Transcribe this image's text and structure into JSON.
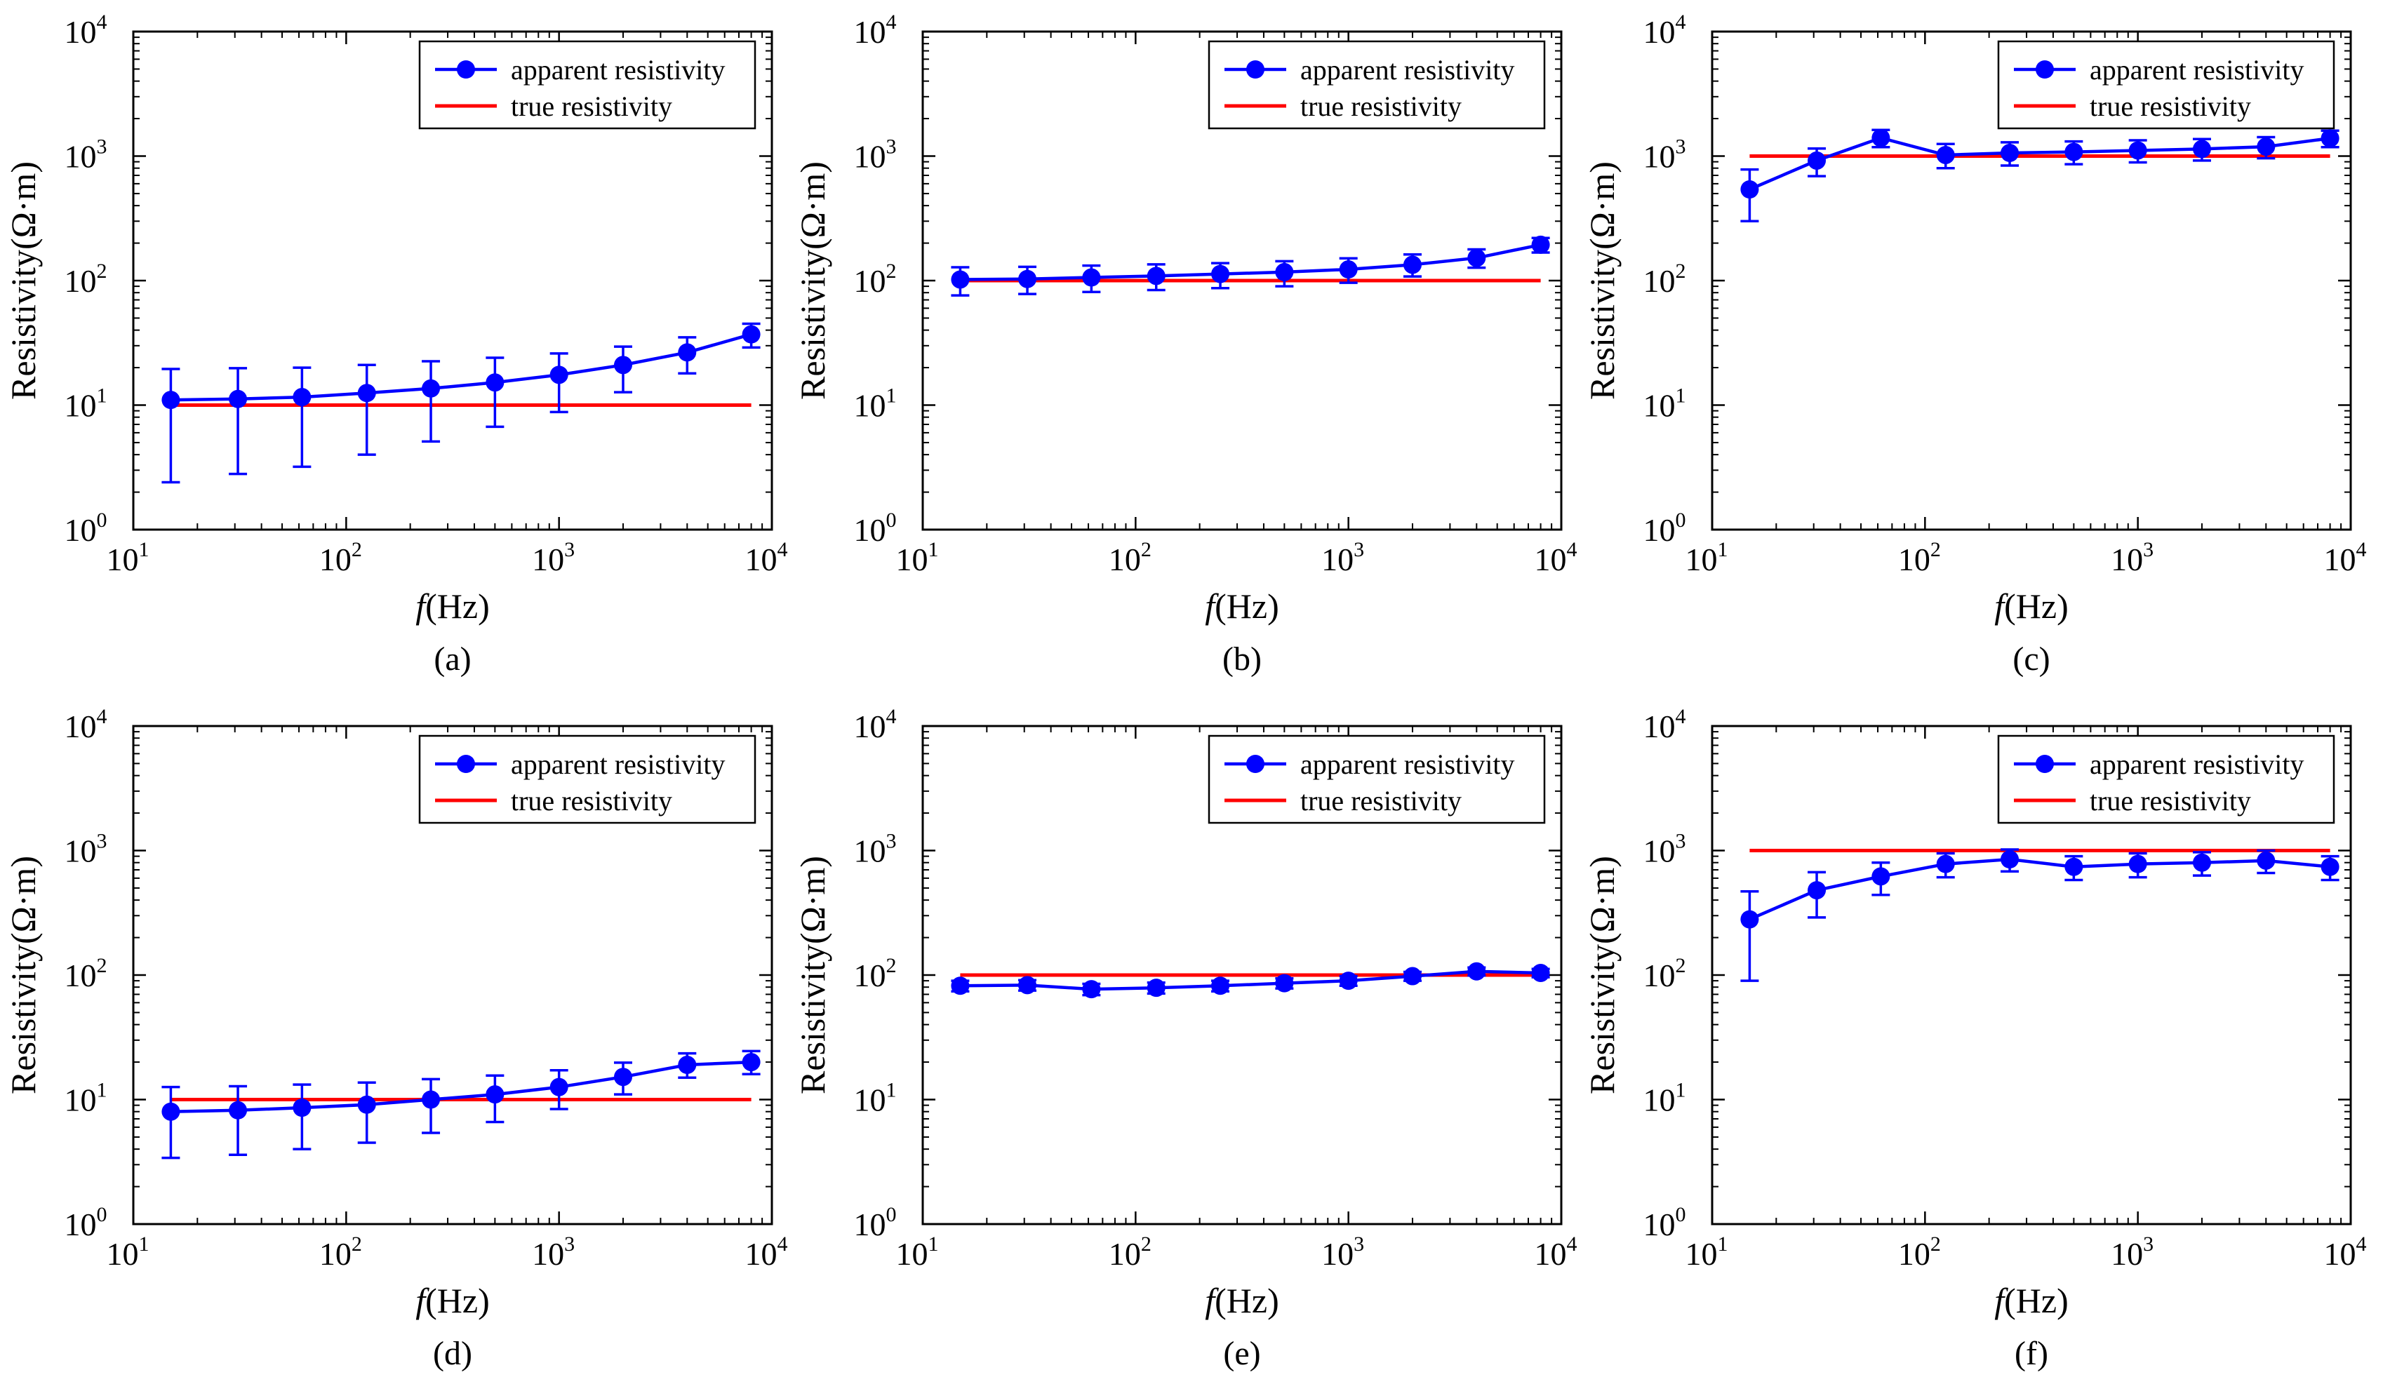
{
  "colors": {
    "apparent": "#0000ff",
    "true": "#ff0000",
    "axis": "#000000"
  },
  "chart_data": [
    {
      "type": "line",
      "caption": "(a)",
      "xlabel_f": "f",
      "xlabel_unit": "(Hz)",
      "ylabel": "Resistivity(Ω·m)",
      "xscale": "log",
      "yscale": "log",
      "xlim": [
        10,
        10000
      ],
      "ylim": [
        1,
        10000
      ],
      "x_ticks": [
        {
          "base": "10",
          "exp": "1"
        },
        {
          "base": "10",
          "exp": "2"
        },
        {
          "base": "10",
          "exp": "3"
        },
        {
          "base": "10",
          "exp": "4"
        }
      ],
      "y_ticks": [
        {
          "base": "10",
          "exp": "0"
        },
        {
          "base": "10",
          "exp": "1"
        },
        {
          "base": "10",
          "exp": "2"
        },
        {
          "base": "10",
          "exp": "3"
        },
        {
          "base": "10",
          "exp": "4"
        }
      ],
      "legend_position": "top-right",
      "series": [
        {
          "name": "apparent resistivity",
          "style": "line-marker-errorbar",
          "x": [
            15,
            31,
            62,
            125,
            250,
            500,
            1000,
            2000,
            4000,
            8000
          ],
          "y": [
            11,
            11.2,
            11.6,
            12.5,
            13.6,
            15.2,
            17.5,
            21,
            26.5,
            37
          ],
          "y_low": [
            2.4,
            2.8,
            3.2,
            4,
            5.1,
            6.7,
            8.8,
            12.7,
            18,
            29
          ],
          "y_high": [
            19.5,
            19.8,
            20,
            21,
            22.5,
            24,
            26,
            29.5,
            35,
            45
          ]
        },
        {
          "name": "true resistivity",
          "style": "line",
          "x": [
            15,
            8000
          ],
          "y": [
            10,
            10
          ]
        }
      ]
    },
    {
      "type": "line",
      "caption": "(b)",
      "xlabel_f": "f",
      "xlabel_unit": "(Hz)",
      "ylabel": "Resistivity(Ω·m)",
      "xscale": "log",
      "yscale": "log",
      "xlim": [
        10,
        10000
      ],
      "ylim": [
        1,
        10000
      ],
      "x_ticks": [
        {
          "base": "10",
          "exp": "1"
        },
        {
          "base": "10",
          "exp": "2"
        },
        {
          "base": "10",
          "exp": "3"
        },
        {
          "base": "10",
          "exp": "4"
        }
      ],
      "y_ticks": [
        {
          "base": "10",
          "exp": "0"
        },
        {
          "base": "10",
          "exp": "1"
        },
        {
          "base": "10",
          "exp": "2"
        },
        {
          "base": "10",
          "exp": "3"
        },
        {
          "base": "10",
          "exp": "4"
        }
      ],
      "legend_position": "top-right",
      "series": [
        {
          "name": "apparent resistivity",
          "style": "line-marker-errorbar",
          "x": [
            15,
            31,
            62,
            125,
            250,
            500,
            1000,
            2000,
            4000,
            8000
          ],
          "y": [
            102,
            103,
            106,
            109,
            113,
            117,
            123,
            134,
            152,
            194
          ],
          "y_low": [
            76,
            78,
            81,
            84,
            87,
            90,
            96,
            108,
            127,
            168
          ],
          "y_high": [
            128,
            129,
            132,
            135,
            138,
            143,
            151,
            162,
            178,
            220
          ]
        },
        {
          "name": "true resistivity",
          "style": "line",
          "x": [
            15,
            8000
          ],
          "y": [
            100,
            100
          ]
        }
      ]
    },
    {
      "type": "line",
      "caption": "(c)",
      "xlabel_f": "f",
      "xlabel_unit": "(Hz)",
      "ylabel": "Resistivity(Ω·m)",
      "xscale": "log",
      "yscale": "log",
      "xlim": [
        10,
        10000
      ],
      "ylim": [
        1,
        10000
      ],
      "x_ticks": [
        {
          "base": "10",
          "exp": "1"
        },
        {
          "base": "10",
          "exp": "2"
        },
        {
          "base": "10",
          "exp": "3"
        },
        {
          "base": "10",
          "exp": "4"
        }
      ],
      "y_ticks": [
        {
          "base": "10",
          "exp": "0"
        },
        {
          "base": "10",
          "exp": "1"
        },
        {
          "base": "10",
          "exp": "2"
        },
        {
          "base": "10",
          "exp": "3"
        },
        {
          "base": "10",
          "exp": "4"
        }
      ],
      "legend_position": "top-right",
      "series": [
        {
          "name": "apparent resistivity",
          "style": "line-marker-errorbar",
          "x": [
            15,
            31,
            62,
            125,
            250,
            500,
            1000,
            2000,
            4000,
            8000
          ],
          "y": [
            540,
            920,
            1400,
            1020,
            1060,
            1080,
            1110,
            1140,
            1190,
            1390
          ],
          "y_low": [
            300,
            690,
            1180,
            800,
            840,
            860,
            890,
            920,
            960,
            1180
          ],
          "y_high": [
            780,
            1150,
            1620,
            1250,
            1290,
            1310,
            1340,
            1370,
            1420,
            1600
          ]
        },
        {
          "name": "true resistivity",
          "style": "line",
          "x": [
            15,
            8000
          ],
          "y": [
            1000,
            1000
          ]
        }
      ]
    },
    {
      "type": "line",
      "caption": "(d)",
      "xlabel_f": "f",
      "xlabel_unit": "(Hz)",
      "ylabel": "Resistivity(Ω·m)",
      "xscale": "log",
      "yscale": "log",
      "xlim": [
        10,
        10000
      ],
      "ylim": [
        1,
        10000
      ],
      "x_ticks": [
        {
          "base": "10",
          "exp": "1"
        },
        {
          "base": "10",
          "exp": "2"
        },
        {
          "base": "10",
          "exp": "3"
        },
        {
          "base": "10",
          "exp": "4"
        }
      ],
      "y_ticks": [
        {
          "base": "10",
          "exp": "0"
        },
        {
          "base": "10",
          "exp": "1"
        },
        {
          "base": "10",
          "exp": "2"
        },
        {
          "base": "10",
          "exp": "3"
        },
        {
          "base": "10",
          "exp": "4"
        }
      ],
      "legend_position": "top-right",
      "series": [
        {
          "name": "apparent resistivity",
          "style": "line-marker-errorbar",
          "x": [
            15,
            31,
            62,
            125,
            250,
            500,
            1000,
            2000,
            4000,
            8000
          ],
          "y": [
            8,
            8.2,
            8.6,
            9.1,
            10,
            11,
            12.6,
            15.2,
            19,
            20
          ],
          "y_low": [
            3.4,
            3.6,
            4,
            4.5,
            5.4,
            6.6,
            8.4,
            11,
            15,
            16
          ],
          "y_high": [
            12.6,
            12.8,
            13.2,
            13.7,
            14.6,
            15.6,
            17.2,
            19.8,
            23.5,
            24.5
          ]
        },
        {
          "name": "true resistivity",
          "style": "line",
          "x": [
            15,
            8000
          ],
          "y": [
            10,
            10
          ]
        }
      ]
    },
    {
      "type": "line",
      "caption": "(e)",
      "xlabel_f": "f",
      "xlabel_unit": "(Hz)",
      "ylabel": "Resistivity(Ω·m)",
      "xscale": "log",
      "yscale": "log",
      "xlim": [
        10,
        10000
      ],
      "ylim": [
        1,
        10000
      ],
      "x_ticks": [
        {
          "base": "10",
          "exp": "1"
        },
        {
          "base": "10",
          "exp": "2"
        },
        {
          "base": "10",
          "exp": "3"
        },
        {
          "base": "10",
          "exp": "4"
        }
      ],
      "y_ticks": [
        {
          "base": "10",
          "exp": "0"
        },
        {
          "base": "10",
          "exp": "1"
        },
        {
          "base": "10",
          "exp": "2"
        },
        {
          "base": "10",
          "exp": "3"
        },
        {
          "base": "10",
          "exp": "4"
        }
      ],
      "legend_position": "top-right",
      "series": [
        {
          "name": "apparent resistivity",
          "style": "line-marker-errorbar",
          "x": [
            15,
            31,
            62,
            125,
            250,
            500,
            1000,
            2000,
            4000,
            8000
          ],
          "y": [
            82,
            83,
            77,
            79,
            82,
            86,
            90,
            98,
            107,
            104
          ],
          "y_low": [
            74,
            75,
            69,
            71,
            74,
            78,
            82,
            90,
            99,
            96
          ],
          "y_high": [
            90,
            91,
            85,
            87,
            90,
            94,
            98,
            106,
            115,
            112
          ]
        },
        {
          "name": "true resistivity",
          "style": "line",
          "x": [
            15,
            8000
          ],
          "y": [
            100,
            100
          ]
        }
      ]
    },
    {
      "type": "line",
      "caption": "(f)",
      "xlabel_f": "f",
      "xlabel_unit": "(Hz)",
      "ylabel": "Resistivity(Ω·m)",
      "xscale": "log",
      "yscale": "log",
      "xlim": [
        10,
        10000
      ],
      "ylim": [
        1,
        10000
      ],
      "x_ticks": [
        {
          "base": "10",
          "exp": "1"
        },
        {
          "base": "10",
          "exp": "2"
        },
        {
          "base": "10",
          "exp": "3"
        },
        {
          "base": "10",
          "exp": "4"
        }
      ],
      "y_ticks": [
        {
          "base": "10",
          "exp": "0"
        },
        {
          "base": "10",
          "exp": "1"
        },
        {
          "base": "10",
          "exp": "2"
        },
        {
          "base": "10",
          "exp": "3"
        },
        {
          "base": "10",
          "exp": "4"
        }
      ],
      "legend_position": "top-right",
      "series": [
        {
          "name": "apparent resistivity",
          "style": "line-marker-errorbar",
          "x": [
            15,
            31,
            62,
            125,
            250,
            500,
            1000,
            2000,
            4000,
            8000
          ],
          "y": [
            280,
            480,
            620,
            780,
            850,
            740,
            780,
            800,
            830,
            740
          ],
          "y_low": [
            90,
            290,
            440,
            610,
            680,
            580,
            610,
            630,
            660,
            580
          ],
          "y_high": [
            470,
            670,
            800,
            950,
            1020,
            900,
            950,
            970,
            1000,
            900
          ]
        },
        {
          "name": "true resistivity",
          "style": "line",
          "x": [
            15,
            8000
          ],
          "y": [
            1000,
            1000
          ]
        }
      ]
    }
  ]
}
